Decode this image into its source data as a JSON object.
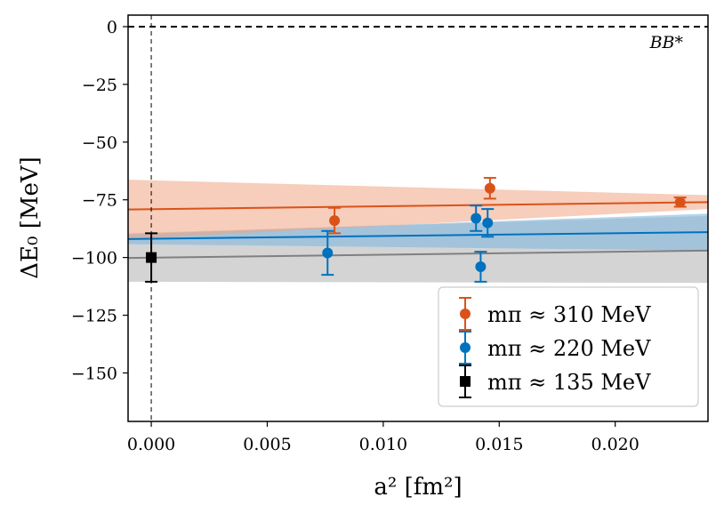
{
  "chart_data": {
    "type": "scatter",
    "title": "",
    "xlabel": "a² [fm²]",
    "ylabel": "ΔE₀ [MeV]",
    "xlim": [
      -0.001,
      0.024
    ],
    "ylim": [
      -171,
      5
    ],
    "x_ticks": [
      0.0,
      0.005,
      0.01,
      0.015,
      0.02
    ],
    "x_tick_labels": [
      "0.000",
      "0.005",
      "0.010",
      "0.015",
      "0.020"
    ],
    "y_ticks": [
      0,
      -25,
      -50,
      -75,
      -100,
      -125,
      -150
    ],
    "y_tick_labels": [
      "0",
      "−25",
      "−50",
      "−75",
      "−100",
      "−125",
      "−150"
    ],
    "grid": false,
    "legend_position": "bottom-right",
    "annotation": "BB*",
    "reference_lines": [
      {
        "orientation": "horizontal",
        "value": 0,
        "style": "dashed"
      },
      {
        "orientation": "vertical",
        "value": 0,
        "style": "dashed"
      }
    ],
    "series": [
      {
        "name": "mπ ≈ 310 MeV",
        "color": "#d95319",
        "band_color": "#f0a484",
        "marker": "circle",
        "points": [
          {
            "x": 0.0079,
            "y": -84,
            "err": 5.5
          },
          {
            "x": 0.0146,
            "y": -70,
            "err": 4.5
          },
          {
            "x": 0.0228,
            "y": -76,
            "err": 2
          }
        ],
        "fit": {
          "y_at_xmin": -79.2,
          "y_at_xmax": -76.0
        },
        "band": {
          "upper_at_xmin": -66.3,
          "upper_at_xmax": -73.0,
          "lower_at_xmin": -92.0,
          "lower_at_xmax": -79.0
        }
      },
      {
        "name": "mπ ≈ 220 MeV",
        "color": "#0072bd",
        "band_color": "#82b7e0",
        "marker": "circle",
        "points": [
          {
            "x": 0.0076,
            "y": -98,
            "err": 9.5
          },
          {
            "x": 0.014,
            "y": -83,
            "err": 5.5
          },
          {
            "x": 0.0142,
            "y": -104,
            "err": 6.5
          },
          {
            "x": 0.0145,
            "y": -85,
            "err": 6
          }
        ],
        "fit": {
          "y_at_xmin": -92.0,
          "y_at_xmax": -89.0
        },
        "band": {
          "upper_at_xmin": -90.0,
          "upper_at_xmax": -81.0,
          "lower_at_xmin": -94.2,
          "lower_at_xmax": -97.0
        }
      },
      {
        "name": "mπ ≈ 135 MeV",
        "color": "#000000",
        "band_color": "#a0a0a0",
        "marker": "square",
        "points": [
          {
            "x": 0.0,
            "y": -100,
            "err": 10.5
          }
        ],
        "fit": {
          "y_at_xmin": -100.2,
          "y_at_xmax": -97.0,
          "line_color": "#808080"
        },
        "band": {
          "upper_at_xmin": -89.5,
          "upper_at_xmax": -82.0,
          "lower_at_xmin": -110.5,
          "lower_at_xmax": -111.0
        }
      }
    ]
  }
}
